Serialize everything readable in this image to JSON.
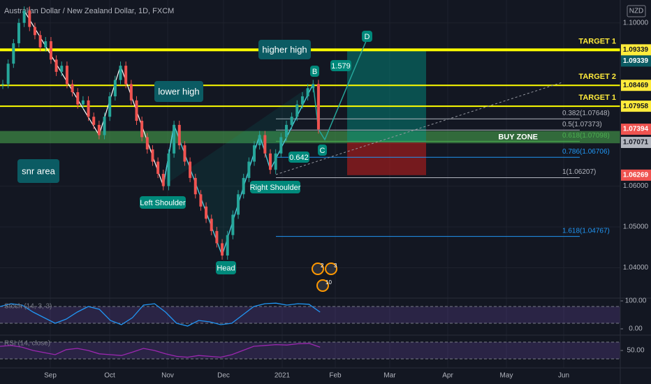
{
  "chart_data": {
    "type": "candlestick",
    "title": "Australian Dollar / New Zealand Dollar, 1D, FXCM",
    "currency": "NZD",
    "closes": [
      1.085,
      1.09,
      1.095,
      1.1,
      1.103,
      1.099,
      1.097,
      1.094,
      1.0955,
      1.091,
      1.088,
      1.0895,
      1.085,
      1.083,
      1.08,
      1.081,
      1.077,
      1.075,
      1.0725,
      1.077,
      1.082,
      1.086,
      1.0895,
      1.085,
      1.081,
      1.076,
      1.072,
      1.069,
      1.066,
      1.063,
      1.06,
      1.068,
      1.075,
      1.07,
      1.066,
      1.062,
      1.058,
      1.055,
      1.052,
      1.049,
      1.046,
      1.043,
      1.048,
      1.053,
      1.058,
      1.062,
      1.066,
      1.07,
      1.0725,
      1.068,
      1.064,
      1.068,
      1.072,
      1.075,
      1.077,
      1.08,
      1.082,
      1.084,
      1.085,
      1.0739
    ],
    "up_color": "#26a69a",
    "down_color": "#ef5350",
    "ylim": [
      1.0329,
      1.1056
    ],
    "yticks": [
      {
        "value": 1.1,
        "label": "1.10000"
      },
      {
        "value": 1.06,
        "label": "1.06000"
      },
      {
        "value": 1.05,
        "label": "1.05000"
      },
      {
        "value": 1.04,
        "label": "1.04000"
      }
    ],
    "months": [
      "Sep",
      "Oct",
      "Nov",
      "Dec",
      "2021",
      "Feb",
      "Mar",
      "Apr",
      "May",
      "Jun"
    ],
    "price_markers": [
      {
        "value": 1.09339,
        "color": "#ffeb3b"
      },
      {
        "value": 1.09339,
        "color": "#0b5b63"
      },
      {
        "value": 1.08469,
        "color": "#ffeb3b"
      },
      {
        "value": 1.07958,
        "color": "#ffeb3b"
      },
      {
        "value": 1.07394,
        "color": "#ef5350"
      },
      {
        "value": 1.07071,
        "color": "#b2b5be"
      },
      {
        "value": 1.06269,
        "color": "#ef5350"
      }
    ],
    "levels": [
      {
        "price": 1.09339,
        "color": "#ffff00",
        "label": "TARGET 1"
      },
      {
        "price": 1.08469,
        "color": "#ffff00",
        "label": "TARGET 2"
      },
      {
        "price": 1.07958,
        "color": "#ffff00",
        "label": "TARGET 1"
      }
    ],
    "buy_zone": {
      "label": "BUY ZONE",
      "low": 1.0705,
      "high": 1.0735
    },
    "fib_levels": [
      {
        "label": "0.382(1.07648)",
        "price": 1.07648,
        "color": "#b2b5be"
      },
      {
        "label": "0.5(1.07373)",
        "price": 1.07373,
        "color": "#b2b5be"
      },
      {
        "label": "0.618(1.07098)",
        "price": 1.07098,
        "color": "#4caf50"
      },
      {
        "label": "0.786(1.06706)",
        "price": 1.06706,
        "color": "#2196f3"
      },
      {
        "label": "1(1.06207)",
        "price": 1.06207,
        "color": "#b2b5be"
      },
      {
        "label": "1.618(1.04767)",
        "price": 1.04767,
        "color": "#2196f3"
      }
    ],
    "position": {
      "entry": 1.07071,
      "target": 1.09339,
      "stop": 1.06269
    },
    "annotations": [
      "higher high",
      "lower high",
      "snr area",
      "Left Shoulder",
      "Right Shoulder",
      "Head",
      "B",
      "C",
      "D",
      "1.579",
      "0.642"
    ],
    "events": [
      "2",
      "3",
      "10"
    ],
    "stoch": {
      "label": "Stoch (14, 3, 3)",
      "values": [
        80,
        90,
        85,
        60,
        40,
        20,
        35,
        60,
        80,
        70,
        30,
        15,
        40,
        85,
        90,
        60,
        20,
        10,
        30,
        25,
        15,
        20,
        50,
        80,
        90,
        92,
        85,
        90,
        88,
        60
      ],
      "ylim": [
        0,
        100
      ],
      "yticks": [
        {
          "value": 100,
          "label": "100.00"
        },
        {
          "value": 0,
          "label": "0.00"
        }
      ]
    },
    "rsi": {
      "label": "RSI (14, close)",
      "values": [
        60,
        62,
        58,
        50,
        45,
        40,
        52,
        55,
        50,
        42,
        40,
        38,
        46,
        55,
        50,
        42,
        36,
        34,
        38,
        36,
        34,
        40,
        50,
        60,
        62,
        64,
        63,
        66,
        67,
        58
      ],
      "ylim": [
        20,
        80
      ],
      "yticks": [
        {
          "value": 50,
          "label": "50.00"
        }
      ]
    }
  }
}
